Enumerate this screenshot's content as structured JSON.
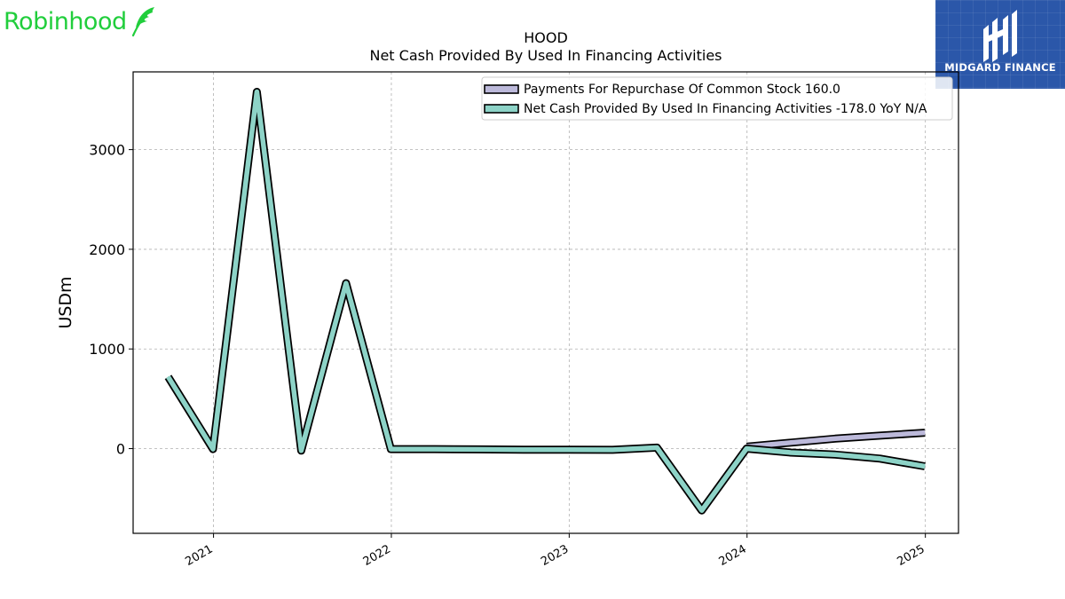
{
  "brand": {
    "left_logo_text": "Robinhood",
    "left_logo_icon": "feather-icon",
    "left_logo_color": "#21ce3c",
    "right_logo_text": "MIDGARD FINANCE",
    "right_logo_icon": "midgard-mark-icon",
    "right_logo_color": "#2b57a9"
  },
  "chart_data": {
    "type": "line",
    "title": "HOOD",
    "subtitle": "Net Cash Provided By Used In Financing Activities",
    "ylabel": "USDm",
    "xlabel": "",
    "ylim": [
      -850,
      3780
    ],
    "xlim": [
      "2020-07-20",
      "2025-03-10"
    ],
    "yticks": [
      0,
      1000,
      2000,
      3000
    ],
    "xticks": [
      {
        "date": "2021-01-01",
        "label": "2021"
      },
      {
        "date": "2022-01-01",
        "label": "2022"
      },
      {
        "date": "2023-01-01",
        "label": "2023"
      },
      {
        "date": "2024-01-01",
        "label": "2024"
      },
      {
        "date": "2025-01-01",
        "label": "2025"
      }
    ],
    "grid": true,
    "legend_position": "top-right",
    "series": [
      {
        "name": "Payments For Repurchase Of Common Stock",
        "legend_label": "Payments For Repurchase Of Common Stock  160.0",
        "color": "#bcb9da",
        "x": [
          "2023-12-31",
          "2024-03-31",
          "2024-06-30",
          "2024-09-30",
          "2024-12-31"
        ],
        "y": [
          20,
          60,
          100,
          130,
          160
        ]
      },
      {
        "name": "Net Cash Provided By Used In Financing Activities",
        "legend_label": "Net Cash Provided By Used In Financing Activities  -178.0 YoY N/A",
        "color": "#8dd3c7",
        "x": [
          "2020-09-30",
          "2020-12-31",
          "2021-03-31",
          "2021-06-30",
          "2021-09-30",
          "2021-12-31",
          "2022-03-31",
          "2022-06-30",
          "2022-09-30",
          "2022-12-31",
          "2023-03-31",
          "2023-06-30",
          "2023-09-30",
          "2023-12-31",
          "2024-03-31",
          "2024-06-30",
          "2024-09-30",
          "2024-12-31"
        ],
        "y": [
          720,
          -5,
          3580,
          -20,
          1660,
          -5,
          -5,
          -8,
          -10,
          -10,
          -12,
          10,
          -620,
          0,
          -40,
          -60,
          -100,
          -178
        ]
      }
    ]
  }
}
